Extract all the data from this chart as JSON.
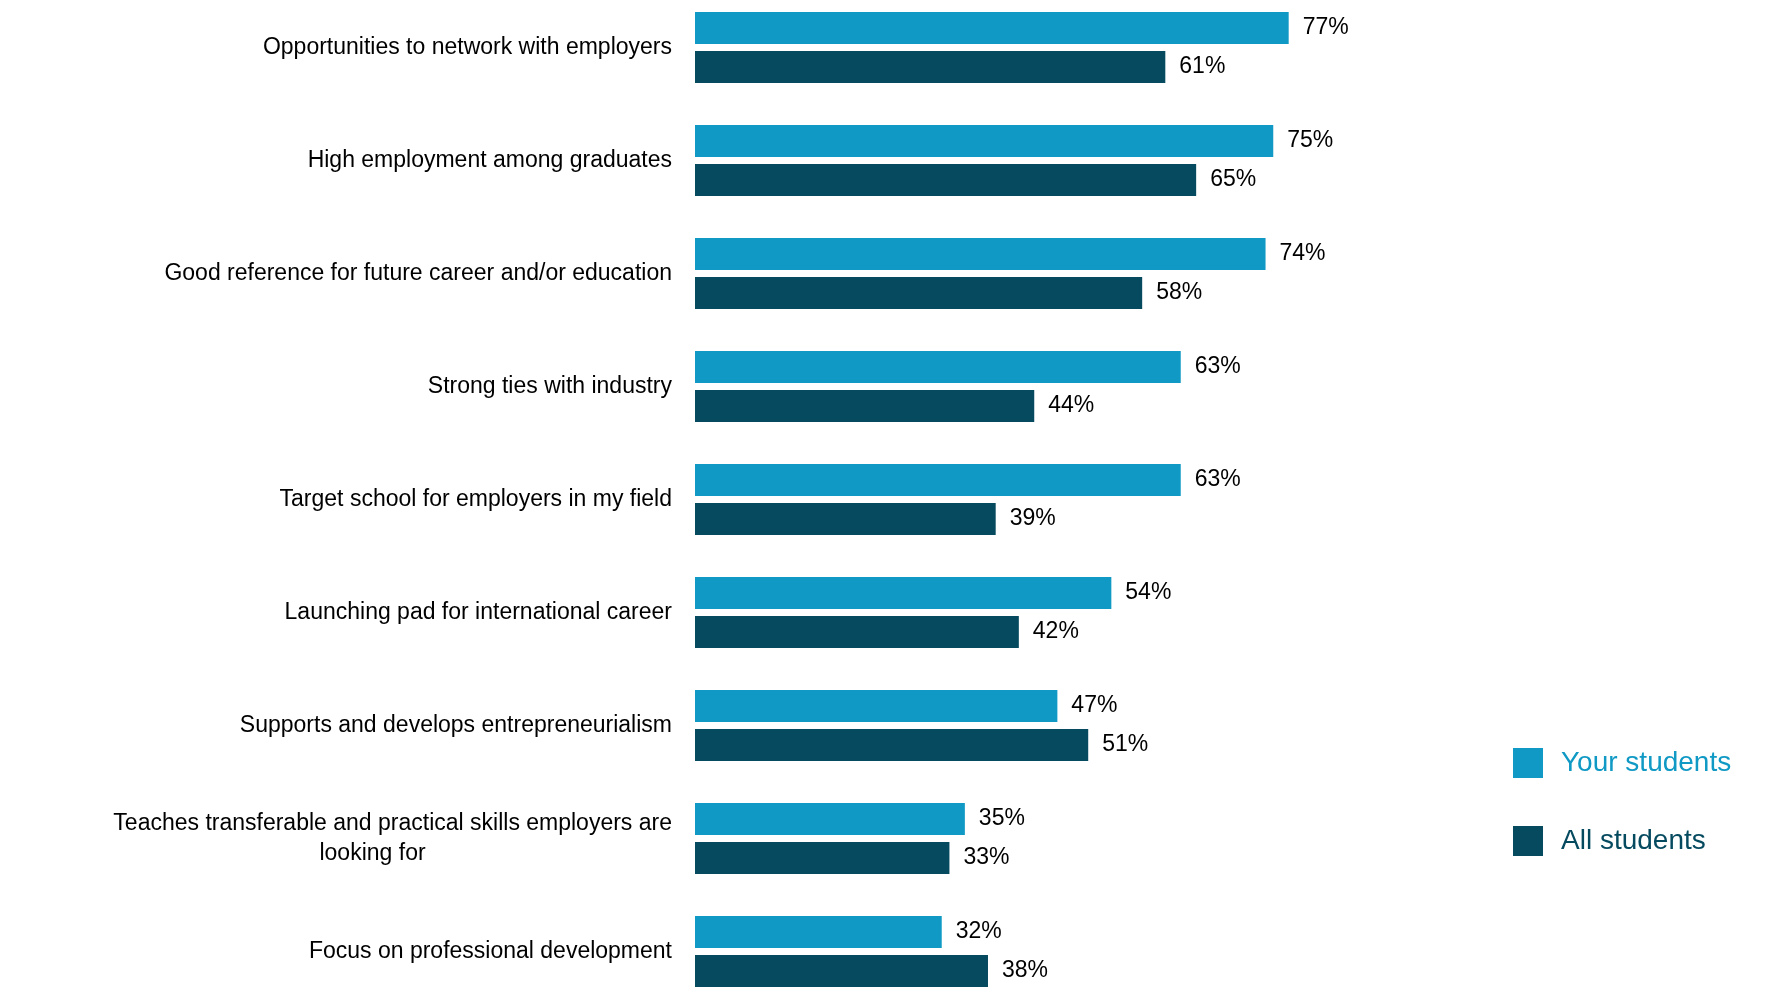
{
  "chart_data": {
    "type": "bar",
    "orientation": "horizontal",
    "categories": [
      "Opportunities to network with employers",
      "High employment among graduates",
      "Good reference for future career and/or education",
      "Strong ties with industry",
      "Target school for employers in my field",
      "Launching pad for international career",
      "Supports and develops entrepreneurialism",
      "Teaches transferable and practical skills employers are looking for",
      "Focus on professional development"
    ],
    "series": [
      {
        "name": "Your students",
        "color": "#0f99c4",
        "values": [
          77,
          75,
          74,
          63,
          63,
          54,
          47,
          35,
          32
        ],
        "value_labels": [
          "77%",
          "75%",
          "74%",
          "63%",
          "63%",
          "54%",
          "47%",
          "35%",
          "32%"
        ]
      },
      {
        "name": "All students",
        "color": "#064a60",
        "values": [
          61,
          65,
          58,
          44,
          39,
          42,
          51,
          33,
          38
        ],
        "value_labels": [
          "61%",
          "65%",
          "58%",
          "44%",
          "39%",
          "42%",
          "51%",
          "33%",
          "38%"
        ]
      }
    ],
    "legend": "right"
  }
}
